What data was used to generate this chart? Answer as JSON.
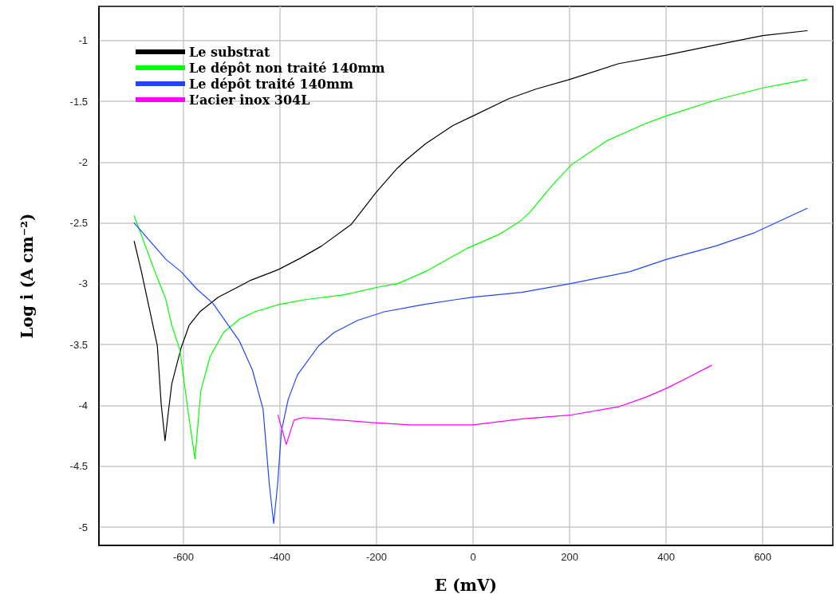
{
  "chart_data": {
    "type": "line",
    "xlabel": "E (mV)",
    "ylabel": "Log i (A cm⁻²)",
    "xlim": [
      -775,
      745
    ],
    "ylim": [
      -5.15,
      -0.72
    ],
    "xticks": [
      -600,
      -400,
      -200,
      0,
      200,
      400,
      600
    ],
    "yticks": [
      -5,
      -4.5,
      -4,
      -3.5,
      -3,
      -2.5,
      -2,
      -1.5,
      -1
    ],
    "grid": true,
    "legend": "top left",
    "marker": "none",
    "line_style": "solid",
    "series": [
      {
        "name": "Le substrat",
        "color": "#000000",
        "x": [
          -702,
          -687,
          -654,
          -646,
          -638,
          -632,
          -624,
          -605,
          -588,
          -566,
          -528,
          -484,
          -460,
          -414,
          -402,
          -358,
          -314,
          -252,
          -201,
          -157,
          -138,
          -99,
          -42,
          0,
          73,
          130,
          200,
          302,
          400,
          474,
          600,
          692
        ],
        "values": [
          -2.65,
          -2.9,
          -3.51,
          -3.99,
          -4.29,
          -4.08,
          -3.82,
          -3.53,
          -3.34,
          -3.23,
          -3.11,
          -3.02,
          -2.97,
          -2.9,
          -2.88,
          -2.79,
          -2.69,
          -2.51,
          -2.25,
          -2.05,
          -1.98,
          -1.85,
          -1.7,
          -1.62,
          -1.48,
          -1.4,
          -1.32,
          -1.19,
          -1.12,
          -1.06,
          -0.96,
          -0.92
        ]
      },
      {
        "name": "Le dépôt non traité 140mm",
        "color": "#00ff00",
        "x": [
          -702,
          -659,
          -637,
          -624,
          -607,
          -591,
          -576,
          -564,
          -545,
          -517,
          -484,
          -452,
          -402,
          -348,
          -266,
          -200,
          -157,
          -99,
          -13,
          56,
          96,
          118,
          164,
          204,
          279,
          359,
          400,
          502,
          600,
          692
        ],
        "values": [
          -2.44,
          -2.9,
          -3.12,
          -3.34,
          -3.55,
          -4.03,
          -4.44,
          -3.88,
          -3.6,
          -3.4,
          -3.29,
          -3.23,
          -3.17,
          -3.13,
          -3.09,
          -3.03,
          -3.0,
          -2.9,
          -2.71,
          -2.59,
          -2.49,
          -2.41,
          -2.19,
          -2.02,
          -1.82,
          -1.68,
          -1.62,
          -1.49,
          -1.39,
          -1.32
        ]
      },
      {
        "name": "Le dépôt traité 140mm",
        "color": "#2244ff",
        "x": [
          -702,
          -636,
          -605,
          -573,
          -539,
          -484,
          -457,
          -435,
          -422,
          -413,
          -405,
          -397,
          -383,
          -364,
          -320,
          -288,
          -239,
          -184,
          -102,
          -36,
          0,
          101,
          200,
          325,
          400,
          502,
          583,
          692
        ],
        "values": [
          -2.5,
          -2.8,
          -2.9,
          -3.04,
          -3.16,
          -3.47,
          -3.71,
          -4.03,
          -4.65,
          -4.97,
          -4.65,
          -4.21,
          -3.95,
          -3.75,
          -3.51,
          -3.4,
          -3.3,
          -3.23,
          -3.17,
          -3.13,
          -3.11,
          -3.07,
          -3.0,
          -2.9,
          -2.8,
          -2.69,
          -2.58,
          -2.38
        ]
      },
      {
        "name": "L’acier inox 304L",
        "color": "#ff00ff",
        "x": [
          -404,
          -387,
          -371,
          -353,
          -304,
          -211,
          -129,
          0,
          101,
          200,
          302,
          359,
          400,
          445,
          494
        ],
        "values": [
          -4.08,
          -4.32,
          -4.12,
          -4.1,
          -4.11,
          -4.14,
          -4.16,
          -4.16,
          -4.11,
          -4.08,
          -4.01,
          -3.93,
          -3.86,
          -3.77,
          -3.67
        ]
      }
    ]
  }
}
